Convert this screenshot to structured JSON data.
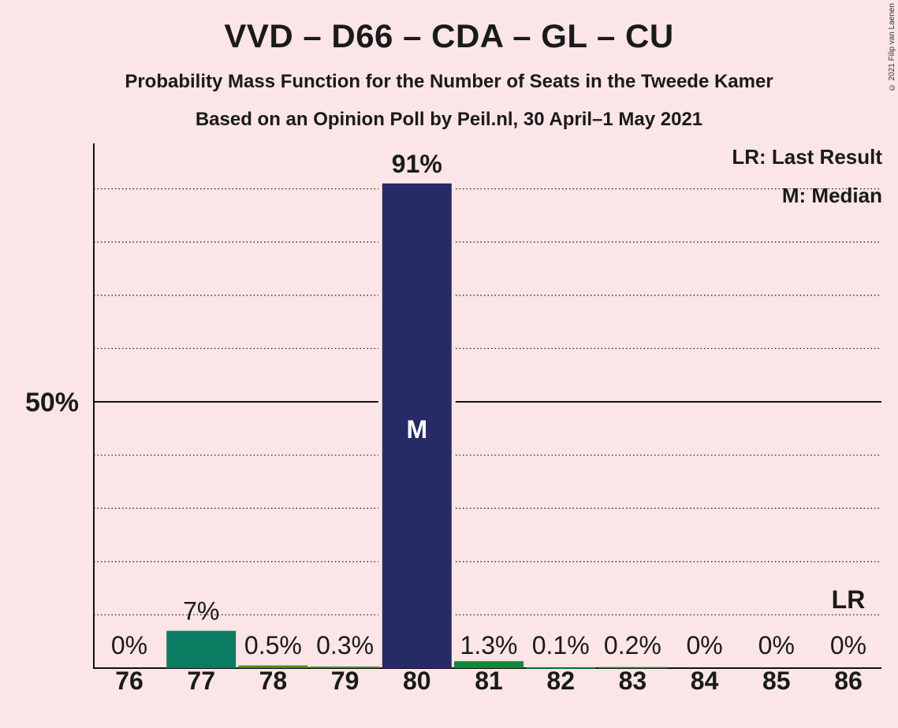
{
  "header": {
    "title": "VVD – D66 – CDA – GL – CU",
    "subtitle_1": "Probability Mass Function for the Number of Seats in the Tweede Kamer",
    "subtitle_2": "Based on an Opinion Poll by Peil.nl, 30 April–1 May 2021",
    "copyright": "© 2021 Filip van Laenen"
  },
  "legend": {
    "last_result": "LR: Last Result",
    "median": "M: Median"
  },
  "chart_data": {
    "type": "bar",
    "categories": [
      "76",
      "77",
      "78",
      "79",
      "80",
      "81",
      "82",
      "83",
      "84",
      "85",
      "86"
    ],
    "values": [
      0,
      7,
      0.5,
      0.3,
      91,
      1.3,
      0.1,
      0.2,
      0,
      0,
      0
    ],
    "labels": [
      "0%",
      "7%",
      "0.5%",
      "0.3%",
      "91%",
      "1.3%",
      "0.1%",
      "0.2%",
      "0%",
      "0%",
      "0%"
    ],
    "bar_colors": [
      "#0a7c61",
      "#0a7c61",
      "#4a8a1c",
      "#4a8a1c",
      "#262b66",
      "#0e8a3a",
      "#0e8a3a",
      "#0e8a3a",
      "#0e8a3a",
      "#0e8a3a",
      "#0e8a3a"
    ],
    "ylim": [
      0,
      100
    ],
    "y_tick_label": "50%",
    "y_tick_value": 50,
    "gridlines": [
      10,
      20,
      30,
      40,
      60,
      70,
      80,
      90
    ],
    "median_category": "80",
    "median_marker": "M",
    "last_result_category": "86",
    "last_result_marker": "LR"
  }
}
